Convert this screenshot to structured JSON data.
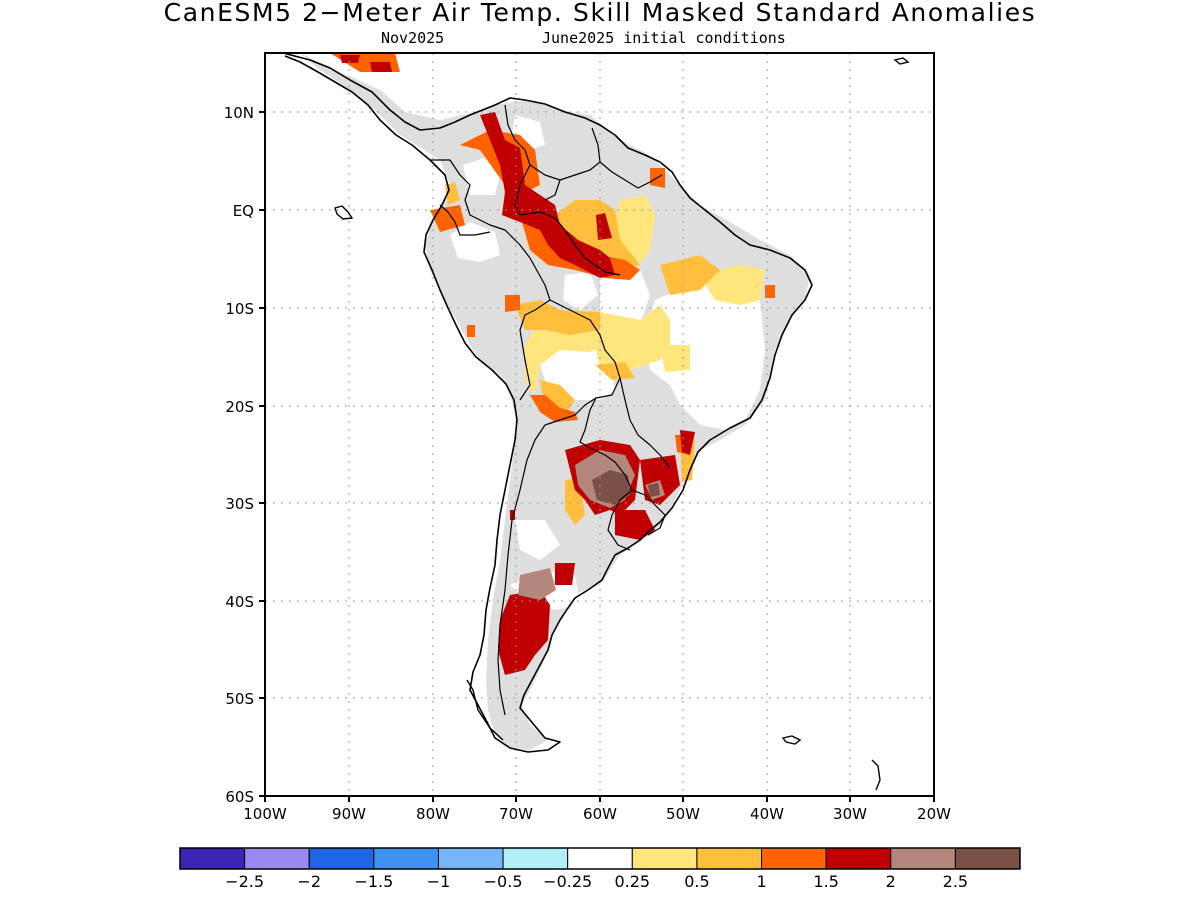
{
  "title": "CanESM5 2−Meter Air Temp. Skill Masked Standard Anomalies",
  "subtitle_month": "Nov2025",
  "subtitle_ic": "June2025 initial conditions",
  "y_axis_labels": [
    "10N",
    "EQ",
    "10S",
    "20S",
    "30S",
    "40S",
    "50S",
    "60S"
  ],
  "x_axis_labels": [
    "100W",
    "90W",
    "80W",
    "70W",
    "60W",
    "50W",
    "40W",
    "30W",
    "20W"
  ],
  "colorbar": {
    "colors": [
      "#3c23b4",
      "#9b88f2",
      "#1f66e6",
      "#3f93f0",
      "#76b6f7",
      "#b1eff8",
      "#ffffff",
      "#ffe57c",
      "#ffbf3c",
      "#ff6300",
      "#c00000",
      "#b4877d",
      "#7b5145"
    ],
    "labels": [
      "−2.5",
      "−2",
      "−1.5",
      "−1",
      "−0.5",
      "−0.25",
      "0.25",
      "0.5",
      "1",
      "1.5",
      "2",
      "2.5"
    ]
  },
  "colors": {
    "no_skill": "#dedede",
    "land_outline": "#000000",
    "grid": "#999999"
  }
}
